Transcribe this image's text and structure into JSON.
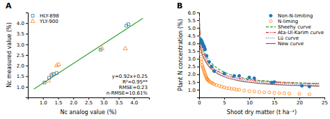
{
  "chart_data": [
    {
      "type": "scatter",
      "title": "A",
      "xlabel": "Nc analog value (%)",
      "ylabel": "Nc measured value (%)",
      "xlim": [
        0.5,
        4.5
      ],
      "ylim": [
        0.5,
        4.5
      ],
      "xticks": [
        {
          "value": 1.0,
          "label": "1.0"
        },
        1.5,
        {
          "value": 2.0,
          "label": "2.0"
        },
        2.5,
        {
          "value": 3.0,
          "label": "3.0"
        },
        3.5,
        {
          "value": 4.0,
          "label": "4.0"
        }
      ],
      "yticks": [
        {
          "value": 1.0,
          "label": "1.0"
        },
        1.5,
        {
          "value": 2.0,
          "label": "2.0"
        },
        2.5,
        {
          "value": 3.0,
          "label": "3.0"
        },
        3.5,
        {
          "value": 4.0,
          "label": "4.0"
        }
      ],
      "series": [
        {
          "name": "HLY-898",
          "type": "scatter",
          "marker": "square-open",
          "x": [
            1.05,
            1.2,
            1.28,
            1.35,
            1.45,
            2.9,
            3.75,
            3.82
          ],
          "values": [
            1.2,
            1.42,
            1.55,
            1.6,
            1.65,
            2.75,
            3.88,
            3.95
          ]
        },
        {
          "name": "YLY-900",
          "type": "scatter",
          "marker": "triangle-open",
          "x": [
            1.18,
            1.3,
            1.45,
            1.52,
            2.95,
            3.72
          ],
          "values": [
            1.28,
            1.58,
            2.0,
            2.05,
            2.8,
            2.8
          ]
        },
        {
          "type": "line",
          "line_style": "solid",
          "x": [
            0.7,
            4.3
          ],
          "values": [
            0.894,
            4.226
          ]
        }
      ],
      "annotations": [
        "y=0.92x+0.25",
        "R²=0.95**",
        "RMSE=0.23",
        "n-RMSE=10.61%"
      ],
      "legend": "upper left",
      "grid": false
    },
    {
      "type": "scatter",
      "title": "B",
      "xlabel": "Shoot dry matter (t ha⁻¹)",
      "ylabel": "Plant N concentration (%)",
      "xlim": [
        0,
        25
      ],
      "ylim": [
        0.5,
        6.0
      ],
      "xticks": [
        0,
        5,
        10,
        15,
        20,
        25
      ],
      "yticks": [
        {
          "value": 1.0,
          "label": "1.0"
        },
        1.5,
        {
          "value": 2.0,
          "label": "2.0"
        },
        2.5,
        {
          "value": 3.0,
          "label": "3.0"
        },
        3.5,
        {
          "value": 4.0,
          "label": "4.0"
        },
        4.5,
        {
          "value": 5.0,
          "label": "5.0"
        },
        5.5,
        {
          "value": 6.0,
          "label": "6.0"
        }
      ],
      "series": [
        {
          "name": "Non-N-limiting",
          "type": "scatter",
          "marker": "circle",
          "x": [
            0.2,
            0.3,
            0.35,
            0.4,
            0.45,
            0.5,
            0.55,
            0.6,
            0.7,
            0.8,
            0.9,
            1.0,
            1.1,
            1.2,
            1.5,
            2.0,
            2.5,
            3.0,
            5.0,
            7.0,
            8.0,
            10.0,
            11.0,
            14.5,
            15.0,
            20.5,
            22.0
          ],
          "values": [
            4.2,
            4.15,
            4.25,
            4.1,
            4.18,
            4.05,
            4.0,
            4.1,
            4.0,
            3.9,
            3.85,
            3.8,
            3.7,
            3.6,
            3.2,
            2.8,
            2.5,
            2.2,
            2.05,
            1.9,
            1.9,
            1.8,
            1.75,
            1.45,
            1.5,
            1.25,
            1.2
          ]
        },
        {
          "name": "N-liming",
          "type": "scatter",
          "marker": "circle-open",
          "x": [
            0.2,
            0.25,
            0.3,
            0.4,
            0.5,
            0.6,
            0.7,
            0.8,
            0.9,
            1.0,
            1.1,
            1.2,
            1.3,
            1.4,
            1.5,
            1.6,
            1.7,
            1.8,
            2.0,
            2.2,
            2.5,
            2.8,
            3.0,
            3.5,
            4.0,
            4.5,
            5.0,
            5.5,
            6.0,
            6.5,
            7.0,
            7.5,
            8.0,
            9.0,
            10.0,
            11.0,
            12.0,
            13.0,
            14.0,
            15.0,
            16.0,
            17.0,
            18.0,
            20.0,
            22.0
          ],
          "values": [
            3.8,
            3.5,
            3.3,
            3.0,
            2.8,
            2.6,
            2.5,
            2.4,
            2.3,
            2.2,
            2.1,
            2.0,
            1.9,
            1.85,
            1.75,
            1.7,
            1.65,
            1.6,
            1.55,
            1.5,
            1.45,
            1.4,
            1.35,
            1.3,
            1.25,
            1.2,
            1.15,
            1.1,
            1.1,
            1.05,
            1.05,
            1.0,
            1.0,
            0.95,
            0.9,
            0.88,
            0.85,
            0.83,
            0.82,
            0.8,
            0.78,
            0.77,
            0.75,
            0.73,
            0.7
          ]
        },
        {
          "name": "Sheehy curve",
          "type": "line",
          "line_style": "dashed",
          "x": [
            0.05,
            0.1,
            0.2,
            0.3,
            0.5,
            0.7,
            1.0,
            1.5,
            2.0,
            3.0,
            4.0,
            5.0,
            6.0,
            7.0,
            8.0,
            9.0,
            10.0,
            12.0,
            14.0,
            16.0,
            18.0,
            20.0,
            22.0,
            24.0
          ],
          "values": [
            5.5,
            5.0,
            4.5,
            4.3,
            4.0,
            3.75,
            3.5,
            3.15,
            2.9,
            2.55,
            2.3,
            2.15,
            2.0,
            1.9,
            1.82,
            1.75,
            1.7,
            1.6,
            1.55,
            1.5,
            1.47,
            1.44,
            1.42,
            1.4
          ]
        },
        {
          "name": "Ata-Ul-Karim curve",
          "type": "line",
          "line_style": "dashdot",
          "x": [
            0.05,
            0.1,
            0.2,
            0.3,
            0.5,
            0.7,
            1.0,
            1.5,
            2.0,
            3.0,
            4.0,
            5.0,
            6.0,
            7.0,
            8.0,
            9.0,
            10.0,
            12.0,
            14.0,
            16.0,
            18.0,
            20.0,
            22.0,
            24.0
          ],
          "values": [
            5.8,
            5.2,
            4.6,
            4.3,
            3.9,
            3.6,
            3.3,
            2.95,
            2.7,
            2.35,
            2.15,
            2.0,
            1.88,
            1.8,
            1.73,
            1.68,
            1.63,
            1.56,
            1.51,
            1.47,
            1.44,
            1.42,
            1.4,
            1.38
          ]
        },
        {
          "name": "Lü curve",
          "type": "line",
          "line_style": "dotted",
          "x": [
            0.05,
            0.1,
            0.2,
            0.3,
            0.5,
            0.7,
            1.0,
            1.5,
            2.0,
            3.0,
            4.0,
            5.0,
            6.0,
            7.0,
            8.0,
            9.0,
            10.0,
            12.0,
            14.0,
            16.0,
            18.0,
            20.0,
            22.0,
            24.0
          ],
          "values": [
            4.8,
            4.4,
            4.0,
            3.85,
            3.6,
            3.4,
            3.15,
            2.85,
            2.62,
            2.3,
            2.1,
            1.95,
            1.83,
            1.74,
            1.67,
            1.61,
            1.56,
            1.48,
            1.43,
            1.39,
            1.36,
            1.33,
            1.31,
            1.29
          ]
        },
        {
          "name": "New curve",
          "type": "line",
          "line_style": "solid",
          "x": [
            0.05,
            0.1,
            0.2,
            0.3,
            0.5,
            0.7,
            1.0,
            1.5,
            2.0,
            3.0,
            4.0,
            5.0,
            6.0,
            7.0,
            8.0,
            9.0,
            10.0,
            12.0,
            14.0,
            16.0,
            18.0,
            20.0,
            22.0,
            24.0
          ],
          "values": [
            4.5,
            4.1,
            3.8,
            3.65,
            3.42,
            3.22,
            3.0,
            2.7,
            2.48,
            2.18,
            1.98,
            1.84,
            1.73,
            1.65,
            1.58,
            1.52,
            1.48,
            1.41,
            1.36,
            1.32,
            1.29,
            1.27,
            1.25,
            1.23
          ]
        }
      ],
      "legend": "upper right",
      "grid": false
    }
  ]
}
